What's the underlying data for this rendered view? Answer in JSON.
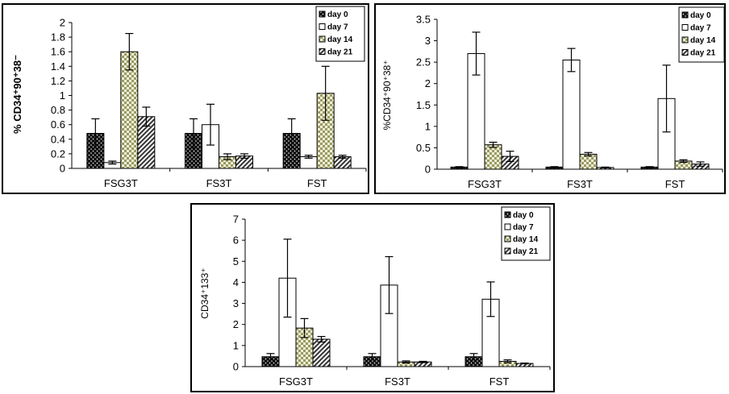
{
  "patterns": {
    "day 0": "dots-dark",
    "day 7": "white",
    "day 14": "checker-olive",
    "day 21": "diagonal-hatch"
  },
  "colors": {
    "frame": "#000000",
    "bar_white": "#ffffff",
    "checker": "#9a9a63",
    "dots_bg": "#141414"
  },
  "chart_data": [
    {
      "type": "bar",
      "title": "",
      "ylabel": "% CD34⁺90⁺38⁻",
      "xlabel": "",
      "categories": [
        "FSG3T",
        "FS3T",
        "FST"
      ],
      "ylim": [
        0,
        2
      ],
      "yticks": [
        "0",
        "0.2",
        "0.4",
        "0.6",
        "0.8",
        "1",
        "1.2",
        "1.4",
        "1.6",
        "1.8",
        "2"
      ],
      "legend_position": "top-right",
      "series": [
        {
          "name": "day 0",
          "values": [
            0.48,
            0.48,
            0.48
          ],
          "errors": [
            0.2,
            0.2,
            0.2
          ]
        },
        {
          "name": "day 7",
          "values": [
            0.08,
            0.6,
            0.16
          ],
          "errors": [
            0.02,
            0.28,
            0.02
          ]
        },
        {
          "name": "day 14",
          "values": [
            1.6,
            0.16,
            1.03
          ],
          "errors": [
            0.25,
            0.04,
            0.37
          ]
        },
        {
          "name": "day 21",
          "values": [
            0.71,
            0.17,
            0.16
          ],
          "errors": [
            0.13,
            0.03,
            0.02
          ]
        }
      ]
    },
    {
      "type": "bar",
      "title": "",
      "ylabel": "%CD34⁺90⁺38⁺",
      "xlabel": "",
      "categories": [
        "FSG3T",
        "FS3T",
        "FST"
      ],
      "ylim": [
        0,
        3.5
      ],
      "yticks": [
        "0",
        "0.5",
        "1",
        "1.5",
        "2",
        "2.5",
        "3",
        "3.5"
      ],
      "legend_position": "top-right",
      "series": [
        {
          "name": "day 0",
          "values": [
            0.05,
            0.05,
            0.05
          ],
          "errors": [
            0.01,
            0.01,
            0.01
          ]
        },
        {
          "name": "day 7",
          "values": [
            2.7,
            2.55,
            1.65
          ],
          "errors": [
            0.5,
            0.27,
            0.78
          ]
        },
        {
          "name": "day 14",
          "values": [
            0.57,
            0.35,
            0.19
          ],
          "errors": [
            0.06,
            0.04,
            0.03
          ]
        },
        {
          "name": "day 21",
          "values": [
            0.3,
            0.04,
            0.12
          ],
          "errors": [
            0.12,
            0.01,
            0.05
          ]
        }
      ]
    },
    {
      "type": "bar",
      "title": "",
      "ylabel": "CD34⁺133⁺",
      "xlabel": "",
      "categories": [
        "FSG3T",
        "FS3T",
        "FST"
      ],
      "ylim": [
        0,
        7
      ],
      "yticks": [
        "0",
        "1",
        "2",
        "3",
        "4",
        "5",
        "6",
        "7"
      ],
      "legend_position": "top-right",
      "series": [
        {
          "name": "day 0",
          "values": [
            0.47,
            0.47,
            0.47
          ],
          "errors": [
            0.15,
            0.15,
            0.15
          ]
        },
        {
          "name": "day 7",
          "values": [
            4.2,
            3.87,
            3.2
          ],
          "errors": [
            1.85,
            1.35,
            0.82
          ]
        },
        {
          "name": "day 14",
          "values": [
            1.83,
            0.22,
            0.25
          ],
          "errors": [
            0.45,
            0.05,
            0.07
          ]
        },
        {
          "name": "day 21",
          "values": [
            1.3,
            0.22,
            0.15
          ],
          "errors": [
            0.13,
            0.03,
            0.02
          ]
        }
      ]
    }
  ]
}
